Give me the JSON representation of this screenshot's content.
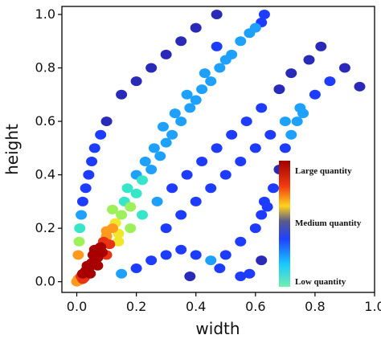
{
  "chart_data": {
    "type": "scatter",
    "title": "",
    "xlabel": "width",
    "ylabel": "height",
    "xlim": [
      -0.05,
      1.0
    ],
    "ylim": [
      -0.04,
      1.03
    ],
    "xticks": [
      "0.0",
      "0.2",
      "0.4",
      "0.6",
      "0.8",
      "1.0"
    ],
    "yticks": [
      "0.0",
      "0.2",
      "0.4",
      "0.6",
      "0.8",
      "1.0"
    ],
    "grid": false,
    "density_colored": true,
    "colormap": [
      "#2a2ab8",
      "#1e3cff",
      "#1ea0ff",
      "#37e6c8",
      "#9ef05a",
      "#f0e62a",
      "#ff9a1e",
      "#e83214",
      "#a80000"
    ],
    "series": [
      {
        "points": [
          [
            0.0,
            0.0
          ],
          [
            0.005,
            0.01
          ],
          [
            0.01,
            0.005
          ],
          [
            0.015,
            0.02
          ],
          [
            0.02,
            0.01
          ],
          [
            0.02,
            0.03
          ],
          [
            0.03,
            0.04
          ],
          [
            0.025,
            0.015
          ],
          [
            0.04,
            0.05
          ],
          [
            0.035,
            0.06
          ],
          [
            0.05,
            0.07
          ],
          [
            0.045,
            0.03
          ],
          [
            0.06,
            0.08
          ],
          [
            0.055,
            0.1
          ],
          [
            0.07,
            0.09
          ],
          [
            0.06,
            0.12
          ],
          [
            0.08,
            0.13
          ],
          [
            0.09,
            0.15
          ],
          [
            0.085,
            0.11
          ],
          [
            0.1,
            0.17
          ],
          [
            0.1,
            0.19
          ],
          [
            0.11,
            0.14
          ],
          [
            0.12,
            0.2
          ],
          [
            0.13,
            0.22
          ],
          [
            0.14,
            0.18
          ],
          [
            0.15,
            0.25
          ],
          [
            0.12,
            0.27
          ],
          [
            0.16,
            0.3
          ],
          [
            0.18,
            0.28
          ],
          [
            0.2,
            0.33
          ],
          [
            0.17,
            0.35
          ],
          [
            0.22,
            0.38
          ],
          [
            0.2,
            0.4
          ],
          [
            0.25,
            0.42
          ],
          [
            0.23,
            0.45
          ],
          [
            0.28,
            0.47
          ],
          [
            0.26,
            0.5
          ],
          [
            0.3,
            0.52
          ],
          [
            0.32,
            0.55
          ],
          [
            0.29,
            0.58
          ],
          [
            0.35,
            0.6
          ],
          [
            0.33,
            0.63
          ],
          [
            0.38,
            0.65
          ],
          [
            0.4,
            0.68
          ],
          [
            0.37,
            0.7
          ],
          [
            0.42,
            0.72
          ],
          [
            0.45,
            0.75
          ],
          [
            0.43,
            0.78
          ],
          [
            0.48,
            0.8
          ],
          [
            0.5,
            0.83
          ],
          [
            0.52,
            0.85
          ],
          [
            0.47,
            0.88
          ],
          [
            0.55,
            0.9
          ],
          [
            0.58,
            0.93
          ],
          [
            0.6,
            0.95
          ],
          [
            0.62,
            0.97
          ],
          [
            0.63,
            1.0
          ],
          [
            0.47,
            1.0
          ],
          [
            0.4,
            0.95
          ],
          [
            0.35,
            0.9
          ],
          [
            0.3,
            0.85
          ],
          [
            0.25,
            0.8
          ],
          [
            0.2,
            0.75
          ],
          [
            0.15,
            0.7
          ],
          [
            0.1,
            0.6
          ],
          [
            0.08,
            0.55
          ],
          [
            0.06,
            0.5
          ],
          [
            0.05,
            0.45
          ],
          [
            0.04,
            0.4
          ],
          [
            0.03,
            0.35
          ],
          [
            0.02,
            0.3
          ],
          [
            0.015,
            0.25
          ],
          [
            0.01,
            0.2
          ],
          [
            0.008,
            0.15
          ],
          [
            0.005,
            0.1
          ],
          [
            0.3,
            0.2
          ],
          [
            0.35,
            0.25
          ],
          [
            0.4,
            0.3
          ],
          [
            0.45,
            0.35
          ],
          [
            0.5,
            0.4
          ],
          [
            0.55,
            0.45
          ],
          [
            0.6,
            0.5
          ],
          [
            0.65,
            0.55
          ],
          [
            0.7,
            0.6
          ],
          [
            0.75,
            0.65
          ],
          [
            0.8,
            0.7
          ],
          [
            0.85,
            0.75
          ],
          [
            0.9,
            0.8
          ],
          [
            0.95,
            0.73
          ],
          [
            0.82,
            0.88
          ],
          [
            0.78,
            0.83
          ],
          [
            0.72,
            0.78
          ],
          [
            0.68,
            0.72
          ],
          [
            0.62,
            0.65
          ],
          [
            0.57,
            0.6
          ],
          [
            0.52,
            0.55
          ],
          [
            0.47,
            0.5
          ],
          [
            0.42,
            0.45
          ],
          [
            0.37,
            0.4
          ],
          [
            0.32,
            0.35
          ],
          [
            0.27,
            0.3
          ],
          [
            0.22,
            0.25
          ],
          [
            0.18,
            0.2
          ],
          [
            0.14,
            0.15
          ],
          [
            0.1,
            0.1
          ],
          [
            0.07,
            0.06
          ],
          [
            0.5,
            0.1
          ],
          [
            0.55,
            0.15
          ],
          [
            0.6,
            0.2
          ],
          [
            0.62,
            0.25
          ],
          [
            0.63,
            0.3
          ],
          [
            0.64,
            0.28
          ],
          [
            0.66,
            0.35
          ],
          [
            0.68,
            0.42
          ],
          [
            0.7,
            0.5
          ],
          [
            0.72,
            0.55
          ],
          [
            0.74,
            0.6
          ],
          [
            0.76,
            0.63
          ],
          [
            0.48,
            0.05
          ],
          [
            0.45,
            0.08
          ],
          [
            0.4,
            0.1
          ],
          [
            0.35,
            0.12
          ],
          [
            0.3,
            0.1
          ],
          [
            0.25,
            0.08
          ],
          [
            0.2,
            0.05
          ],
          [
            0.15,
            0.03
          ],
          [
            0.38,
            0.02
          ],
          [
            0.58,
            0.03
          ],
          [
            0.62,
            0.08
          ],
          [
            0.55,
            0.02
          ]
        ]
      }
    ],
    "legend": {
      "placement": "right",
      "labels": [
        "Large quantity",
        "Medium quantity",
        "Low quantity"
      ]
    }
  }
}
